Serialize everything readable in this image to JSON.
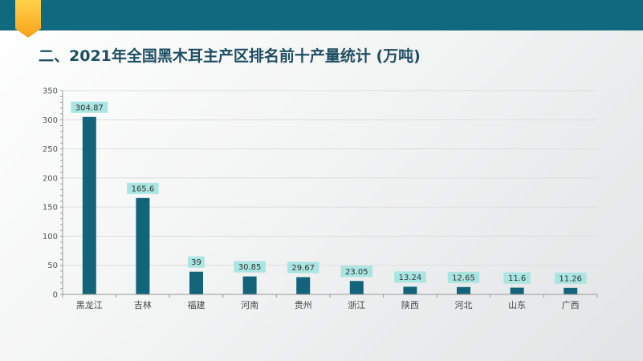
{
  "header": {
    "title": "二、2021年全国黑木耳主产区排名前十产量统计 (万吨)"
  },
  "colors": {
    "bar": "#12647b",
    "label_box": "#a9e5e1",
    "topbar": "#0f6a80",
    "accent": "#f7a21b",
    "grid": "#dddddd",
    "axis": "#999999"
  },
  "chart_data": {
    "type": "bar",
    "title": "",
    "xlabel": "",
    "ylabel": "",
    "categories": [
      "黑龙江",
      "吉林",
      "福建",
      "河南",
      "贵州",
      "浙江",
      "陕西",
      "河北",
      "山东",
      "广西"
    ],
    "values": [
      304.87,
      165.6,
      39,
      30.85,
      29.67,
      23.05,
      13.24,
      12.65,
      11.6,
      11.26
    ],
    "value_labels": [
      "304.87",
      "165.6",
      "39",
      "30.85",
      "29.67",
      "23.05",
      "13.24",
      "12.65",
      "11.6",
      "11.26"
    ],
    "ylim": [
      0,
      350
    ],
    "yticks": [
      0,
      50,
      100,
      150,
      200,
      250,
      300,
      350
    ],
    "grid": true,
    "legend": "none"
  }
}
